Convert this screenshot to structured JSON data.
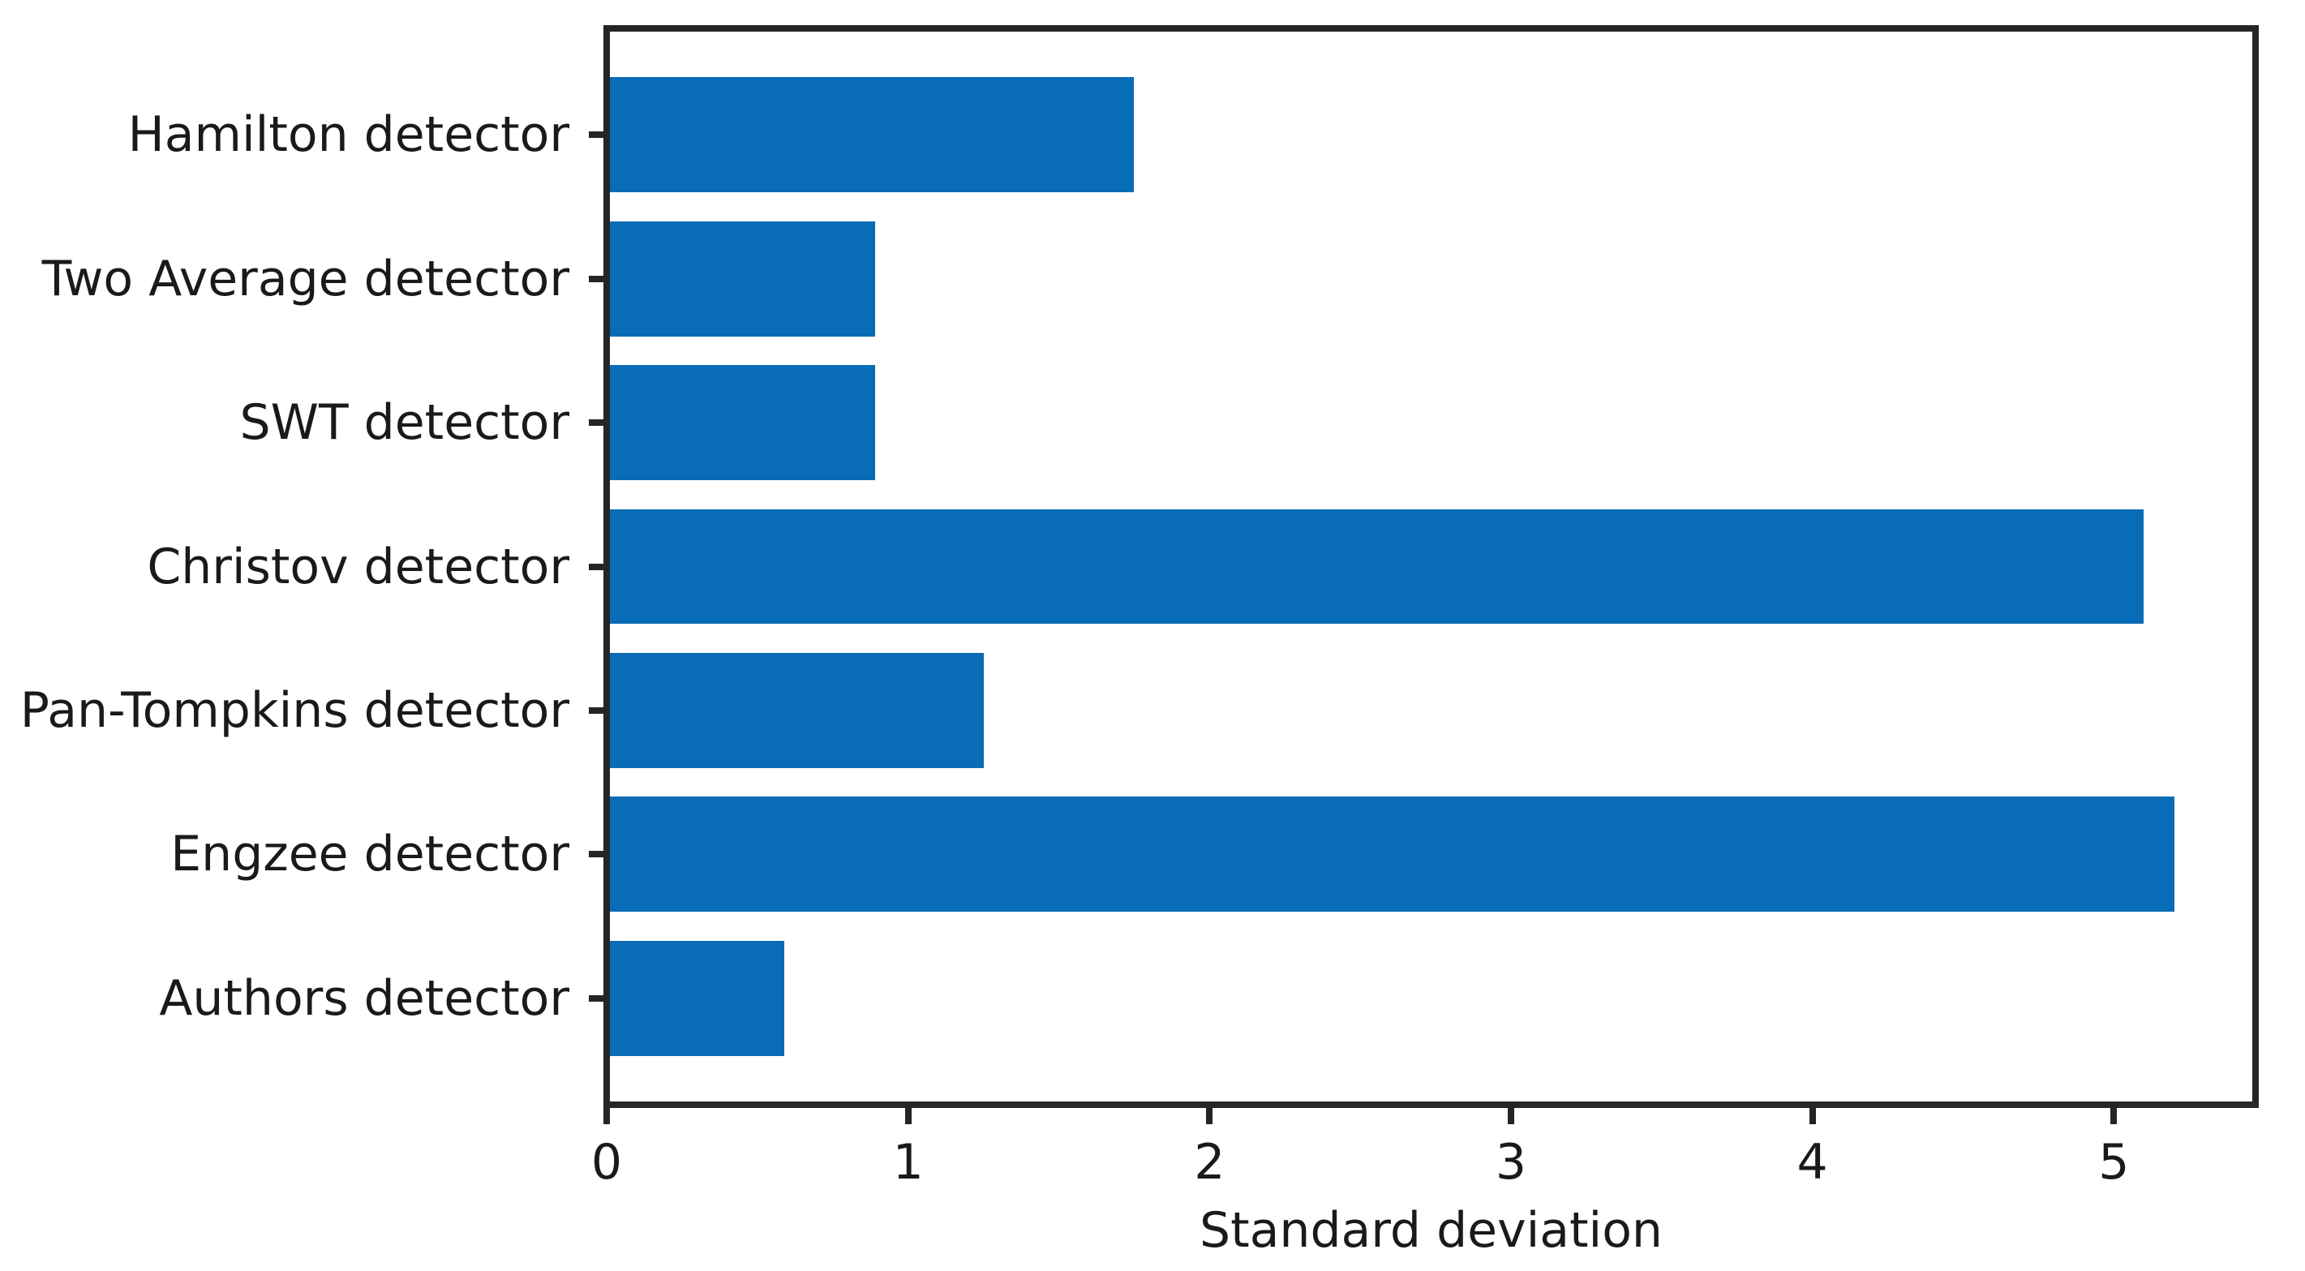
{
  "figure": {
    "background": "#ffffff"
  },
  "chart_data": {
    "type": "bar",
    "orientation": "horizontal",
    "title": "",
    "xlabel": "Standard deviation",
    "ylabel": "",
    "categories": [
      "Hamilton detector",
      "Two Average detector",
      "SWT detector",
      "Christov detector",
      "Pan-Tompkins detector",
      "Engzee detector",
      "Authors detector"
    ],
    "values": [
      1.75,
      0.89,
      0.89,
      5.1,
      1.25,
      5.2,
      0.59
    ],
    "xticks": [
      0,
      1,
      2,
      3,
      4,
      5
    ],
    "xlim": [
      0,
      5.47
    ],
    "grid": false,
    "legend": null,
    "bar_color": "#086cb6",
    "axis_color": "#252525",
    "text_color": "#1a1a1a",
    "bar_height_fraction": 0.8
  }
}
